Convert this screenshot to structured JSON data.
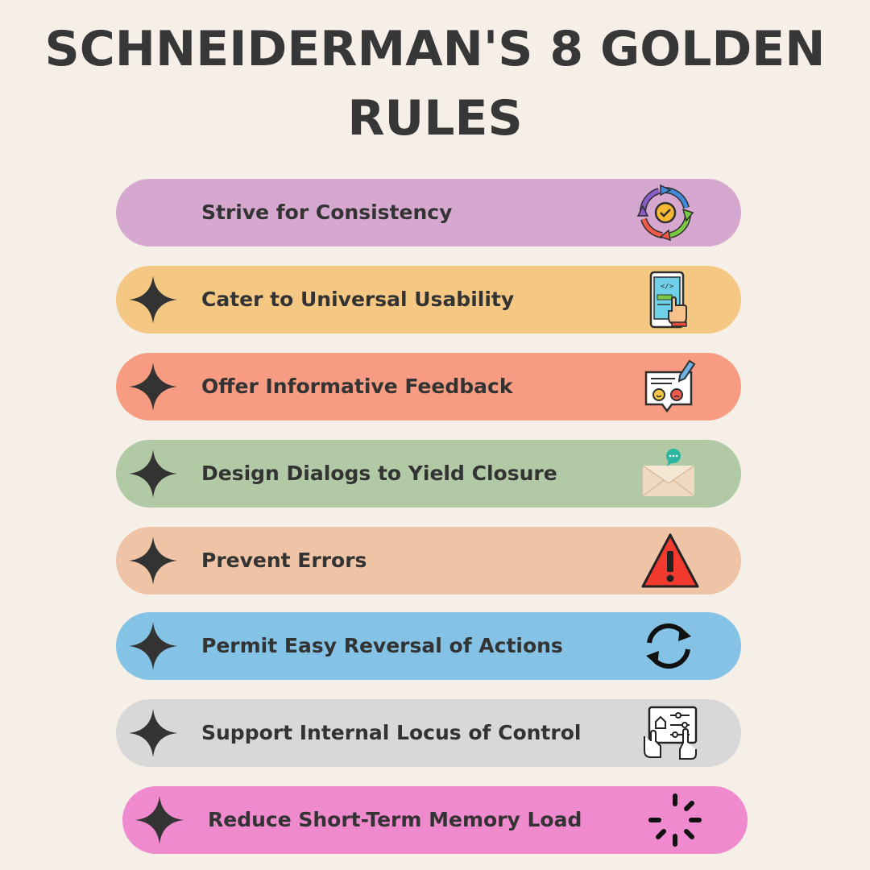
{
  "title": {
    "line1": "SCHNEIDERMAN'S 8 GOLDEN",
    "line2": "RULES"
  },
  "rules": [
    {
      "label": "Strive for Consistency",
      "color": "#d6a8cf",
      "icon": "cycle-arrows-icon",
      "star": false
    },
    {
      "label": "Cater to Universal Usability",
      "color": "#f4c783",
      "icon": "tablet-touch-icon",
      "star": true
    },
    {
      "label": "Offer Informative Feedback",
      "color": "#f79c82",
      "icon": "feedback-icon",
      "star": true
    },
    {
      "label": "Design Dialogs to Yield Closure",
      "color": "#b2c9a5",
      "icon": "envelope-message-icon",
      "star": true
    },
    {
      "label": "Prevent Errors",
      "color": "#efc3a5",
      "icon": "warning-triangle-icon",
      "star": true
    },
    {
      "label": "Permit Easy Reversal of Actions",
      "color": "#84c3e6",
      "icon": "refresh-icon",
      "star": true
    },
    {
      "label": "Support Internal Locus of Control",
      "color": "#d8d8d8",
      "icon": "control-panel-icon",
      "star": true
    },
    {
      "label": "Reduce Short-Term Memory Load",
      "color": "#f08ace",
      "icon": "loading-spinner-icon",
      "star": true
    }
  ]
}
